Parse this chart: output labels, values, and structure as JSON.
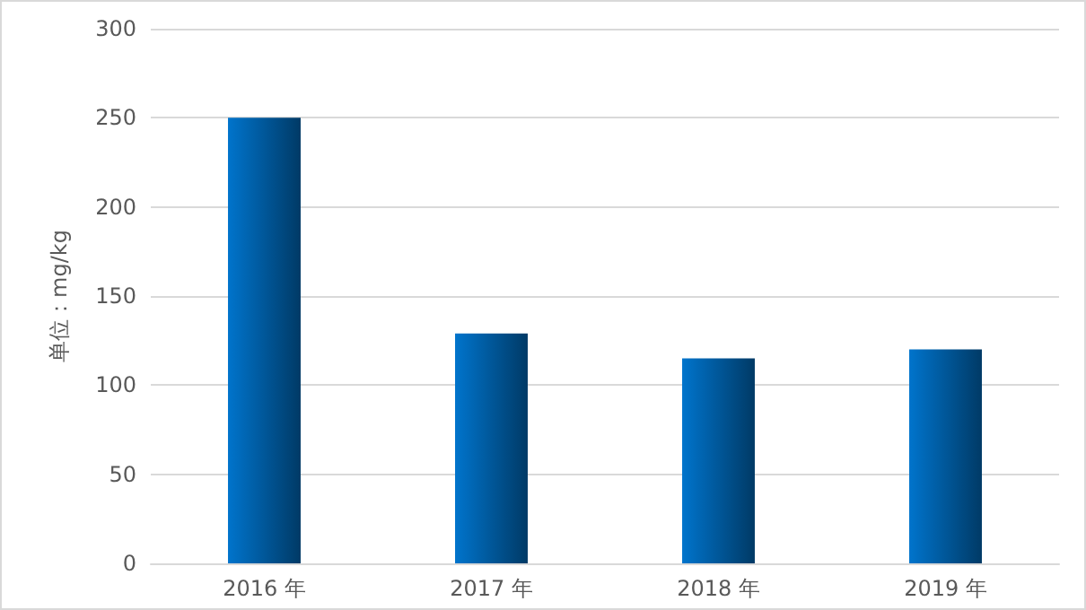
{
  "chart_data": {
    "type": "bar",
    "ylabel": "单位：mg/kg",
    "categories": [
      "2016 年",
      "2017 年",
      "2018 年",
      "2019 年"
    ],
    "values": [
      250,
      129,
      115,
      120
    ],
    "color": "#0074cc",
    "ylim": [
      0,
      300
    ],
    "yticks": [
      0,
      50,
      100,
      150,
      200,
      250,
      300
    ],
    "grid": "y"
  }
}
